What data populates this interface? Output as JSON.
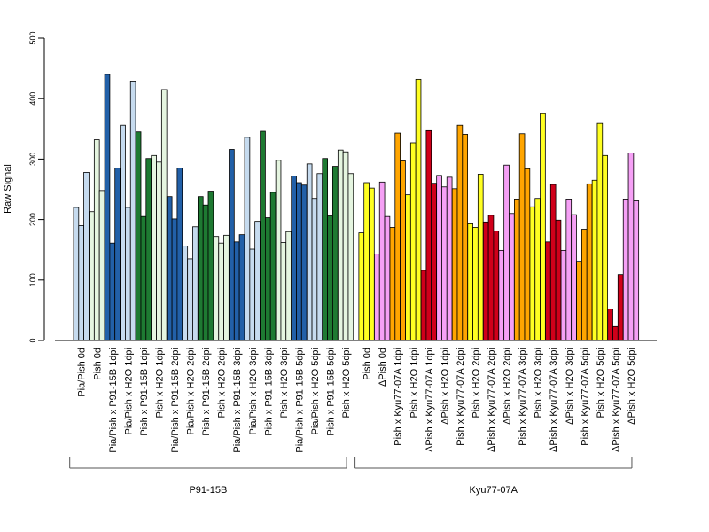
{
  "chart_data": {
    "type": "bar",
    "title": "",
    "xlabel": "",
    "ylabel": "Raw Signal",
    "ylim": [
      0,
      500
    ],
    "yticks": [
      0,
      100,
      200,
      300,
      400,
      500
    ],
    "grid": false,
    "categories": [
      "Pia/Pish 0d",
      "Pish 0d",
      "Pia/Pish x P91-15B 1dpi",
      "Pia/Pish x H2O 1dpi",
      "Pish x P91-15B 1dpi",
      "Pish x H2O 1dpi",
      "Pia/Pish x P91-15B 2dpi",
      "Pia/Pish x H2O 2dpi",
      "Pish x P91-15B 2dpi",
      "Pish x H2O 2dpi",
      "Pia/Pish x P91-15B 3dpi",
      "Pia/Pish x H2O 3dpi",
      "Pish x P91-15B 3dpi",
      "Pish x H2O 3dpi",
      "Pia/Pish x P91-15B 5dpi",
      "Pia/Pish x H2O 5dpi",
      "Pish x P91-15B 5dpi",
      "Pish x H2O 5dpi",
      "Pish 0d",
      "ΔPish 0d",
      "Pish x Kyu77-07A 1dpi",
      "Pish x H2O 1dpi",
      "ΔPish x Kyu77-07A 1dpi",
      "ΔPish x H2O 1dpi",
      "Pish x Kyu77-07A 2dpi",
      "Pish x H2O 2dpi",
      "ΔPish x Kyu77-07A 2dpi",
      "ΔPish x H2O 2dpi",
      "Pish x Kyu77-07A 3dpi",
      "Pish x H2O 3dpi",
      "ΔPish x Kyu77-07A 3dpi",
      "ΔPish x H2O 3dpi",
      "Pish x Kyu77-07A 5dpi",
      "Pish x H2O 5dpi",
      "ΔPish x Kyu77-07A 5dpi",
      "ΔPish x H2O 5dpi"
    ],
    "group_colors": [
      "#c6dbef",
      "#e5f5e0",
      "#2260a8",
      "#c6dbef",
      "#1e7a32",
      "#e5f5e0",
      "#2260a8",
      "#c6dbef",
      "#1e7a32",
      "#e5f5e0",
      "#2260a8",
      "#c6dbef",
      "#1e7a32",
      "#e5f5e0",
      "#2260a8",
      "#c6dbef",
      "#1e7a32",
      "#e5f5e0",
      "#ffff22",
      "#f5a0f5",
      "#ffa500",
      "#ffff22",
      "#d0001a",
      "#f5a0f5",
      "#ffa500",
      "#ffff22",
      "#d0001a",
      "#f5a0f5",
      "#ffa500",
      "#ffff22",
      "#d0001a",
      "#f5a0f5",
      "#ffa500",
      "#ffff22",
      "#d0001a",
      "#f5a0f5"
    ],
    "values": [
      [
        220,
        190,
        278
      ],
      [
        213,
        332,
        248
      ],
      [
        440,
        161,
        285
      ],
      [
        356,
        220,
        429
      ],
      [
        345,
        205,
        301
      ],
      [
        306,
        295,
        415
      ],
      [
        238,
        201,
        285
      ],
      [
        156,
        135,
        188
      ],
      [
        238,
        224,
        247
      ],
      [
        172,
        161,
        174
      ],
      [
        316,
        163,
        175
      ],
      [
        336,
        151,
        197
      ],
      [
        346,
        203,
        245
      ],
      [
        298,
        162,
        180
      ],
      [
        272,
        261,
        257
      ],
      [
        292,
        235,
        276
      ],
      [
        301,
        206,
        288
      ],
      [
        315,
        312,
        276
      ],
      [
        178,
        261,
        252
      ],
      [
        143,
        262,
        205
      ],
      [
        187,
        343,
        297
      ],
      [
        241,
        327,
        432
      ],
      [
        116,
        347,
        260
      ],
      [
        273,
        254,
        270
      ],
      [
        251,
        356,
        341
      ],
      [
        193,
        187,
        275
      ],
      [
        196,
        207,
        181
      ],
      [
        149,
        290,
        210
      ],
      [
        234,
        342,
        284
      ],
      [
        221,
        235,
        375
      ],
      [
        163,
        258,
        199
      ],
      [
        149,
        234,
        208
      ],
      [
        131,
        184,
        259
      ],
      [
        265,
        359,
        306
      ],
      [
        52,
        23,
        109
      ],
      [
        234,
        310,
        231
      ]
    ],
    "groups": [
      {
        "label": "P91-15B"
      },
      {
        "label": "Kyu77-07A"
      }
    ]
  }
}
